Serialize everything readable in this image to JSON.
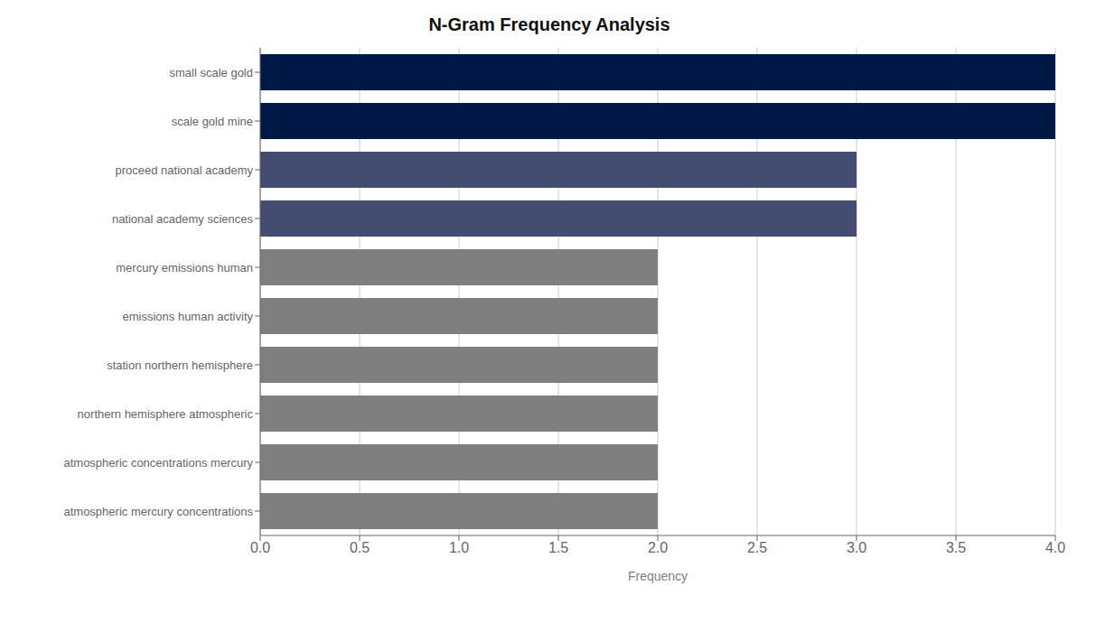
{
  "chart_data": {
    "type": "bar",
    "orientation": "horizontal",
    "title": "N-Gram Frequency Analysis",
    "xlabel": "Frequency",
    "categories": [
      "atmospheric mercury concentrations",
      "atmospheric concentrations mercury",
      "northern hemisphere atmospheric",
      "station northern hemisphere",
      "emissions human activity",
      "mercury emissions human",
      "national academy sciences",
      "proceed national academy",
      "scale gold mine",
      "small scale gold"
    ],
    "values": [
      2,
      2,
      2,
      2,
      2,
      2,
      3,
      3,
      4,
      4
    ],
    "colors": [
      "#7f7f7f",
      "#7f7f7f",
      "#7f7f7f",
      "#7f7f7f",
      "#7f7f7f",
      "#7f7f7f",
      "#454c72",
      "#454c72",
      "#001845",
      "#001845"
    ],
    "xlim": [
      0,
      4.0
    ],
    "xticks": [
      {
        "value": 0,
        "label": "0.0"
      },
      0.5,
      {
        "value": 1,
        "label": "1.0"
      },
      1.5,
      {
        "value": 2,
        "label": "2.0"
      },
      2.5,
      {
        "value": 3,
        "label": "3.0"
      },
      3.5,
      {
        "value": 4,
        "label": "4.0"
      }
    ],
    "grid": true
  }
}
